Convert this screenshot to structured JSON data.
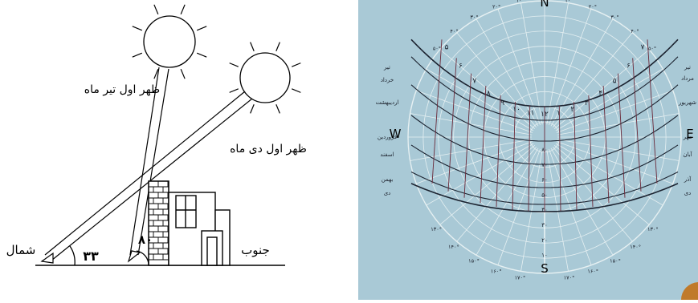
{
  "left_diagram": {
    "label_summer": "ظهر اول تیر ماه",
    "label_winter": "ظهر اول دی ماه",
    "label_north": "شمال",
    "label_south": "جنوب",
    "angle_winter": "۳۳",
    "angle_summer": "۸۰"
  },
  "sun_path": {
    "cardinal_n": "N",
    "cardinal_s": "S",
    "cardinal_e": "E",
    "cardinal_w": "W",
    "months_left": [
      "تیر",
      "خرداد",
      "اردیبهشت",
      "فروردین",
      "اسفند",
      "بهمن",
      "دی"
    ],
    "months_right": [
      "تیر",
      "مرداد",
      "شهریور",
      "مهر",
      "آبان",
      "آذر",
      "دی"
    ],
    "hours": [
      "۵",
      "۶",
      "۷",
      "۸",
      "۹",
      "۱۰",
      "۱۱",
      "۱۲",
      "۱",
      "۲",
      "۳",
      "۴",
      "۵",
      "۶",
      "۷"
    ],
    "altitudes": [
      "۸۰",
      "۷۰",
      "۶۰",
      "۵۰",
      "۴۰",
      "۳۰",
      "۲۰",
      "۱۰"
    ],
    "azimuth_top": [
      "۱۰°",
      "۲۰°",
      "۳۰°",
      "۴۰°",
      "۵۰°"
    ],
    "azimuth_bottom": [
      "۱۳۰°",
      "۱۴۰°",
      "۱۵۰°",
      "۱۶۰°",
      "۱۷۰°"
    ],
    "azimuth_side": [
      "۷۰°",
      "۸۰°",
      "۱۰۰°",
      "۱۱۰°",
      "۱۲۰°"
    ]
  },
  "colors": {
    "chart_bg": "#a9c9d6",
    "grid": "#e6f0f2",
    "curve": "#1c2330",
    "hour_line": "#6b2a3a"
  }
}
